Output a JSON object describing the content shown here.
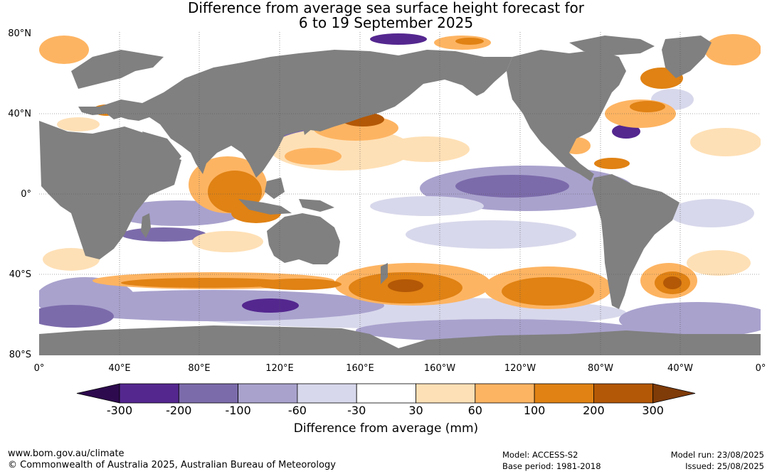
{
  "title": {
    "line1": "Difference from average sea surface height forecast for",
    "line2": "6 to 19 September 2025"
  },
  "map": {
    "lat_ticks": [
      "80°N",
      "40°N",
      "0°",
      "40°S",
      "80°S"
    ],
    "lon_ticks": [
      "0°",
      "40°E",
      "80°E",
      "120°E",
      "160°E",
      "160°W",
      "120°W",
      "80°W",
      "40°W",
      "0°"
    ],
    "colors": {
      "land": "#808080",
      "ocean_neutral": "#ffffff",
      "grid": "#555555"
    }
  },
  "colorbar": {
    "title": "Difference from average (mm)",
    "labels": [
      "-300",
      "-200",
      "-100",
      "-60",
      "-30",
      "30",
      "60",
      "100",
      "200",
      "300"
    ],
    "colors": [
      "#2d0a4e",
      "#54278f",
      "#7c6bab",
      "#a9a2cd",
      "#d8d8ec",
      "#ffffff",
      "#fee0b6",
      "#fdb462",
      "#e08214",
      "#b35806",
      "#7f3b08"
    ]
  },
  "footer": {
    "url": "www.bom.gov.au/climate",
    "copyright": "© Commonwealth of Australia 2025, Australian Bureau of Meteorology",
    "model": "Model: ACCESS-S2",
    "base_period": "Base period: 1981-2018",
    "model_run": "Model run: 23/08/2025",
    "issued": "Issued: 25/08/2025"
  }
}
